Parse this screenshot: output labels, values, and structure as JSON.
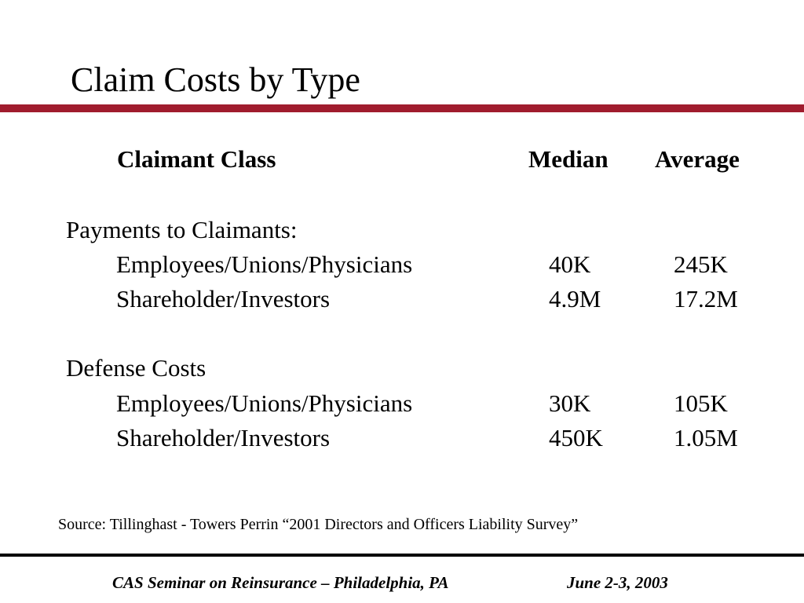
{
  "slide": {
    "title": "Claim Costs by Type",
    "accent_color": "#a01c2e",
    "footer_rule_color": "#000000"
  },
  "table": {
    "headers": {
      "class": "Claimant Class",
      "median": "Median",
      "average": "Average"
    },
    "sections": [
      {
        "heading": "Payments to Claimants:",
        "rows": [
          {
            "label": "Employees/Unions/Physicians",
            "median": "40K",
            "average": "245K"
          },
          {
            "label": "Shareholder/Investors",
            "median": "4.9M",
            "average": "17.2M"
          }
        ]
      },
      {
        "heading": "Defense Costs",
        "rows": [
          {
            "label": "Employees/Unions/Physicians",
            "median": "30K",
            "average": "105K"
          },
          {
            "label": "Shareholder/Investors",
            "median": "450K",
            "average": "1.05M"
          }
        ]
      }
    ]
  },
  "source": "Source:  Tillinghast - Towers Perrin “2001 Directors and Officers Liability Survey”",
  "footer": {
    "seminar": "CAS Seminar on Reinsurance – Philadelphia, PA",
    "date": "June 2-3, 2003"
  }
}
